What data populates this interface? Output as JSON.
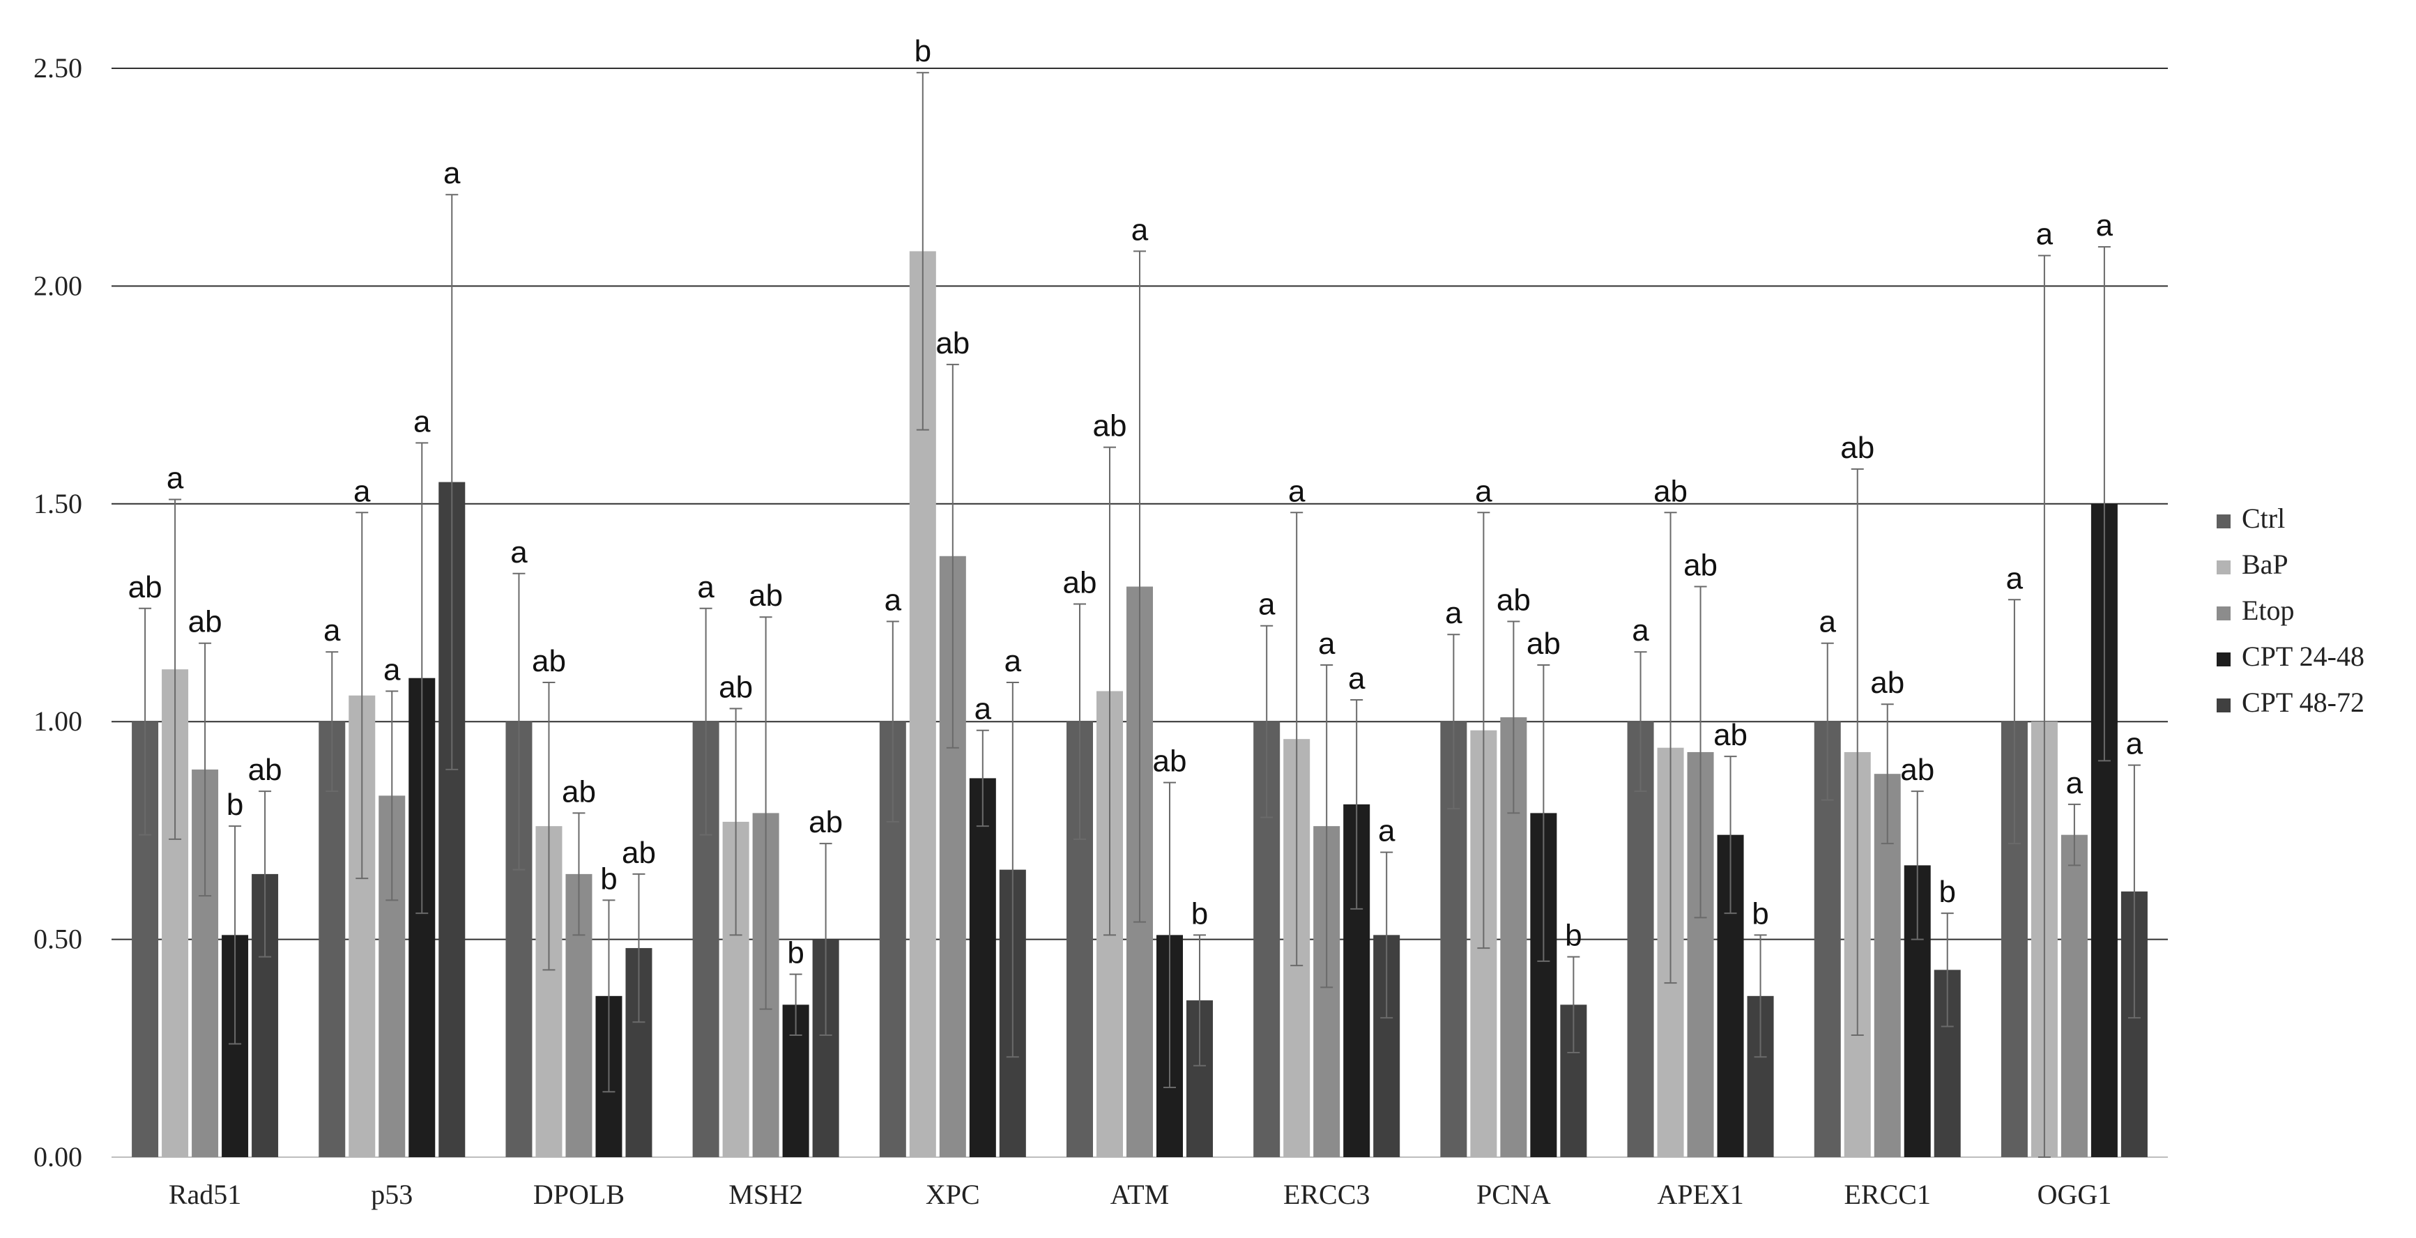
{
  "chart_data": {
    "type": "bar",
    "categories": [
      "Rad51",
      "p53",
      "DPOLB",
      "MSH2",
      "XPC",
      "ATM",
      "ERCC3",
      "PCNA",
      "APEX1",
      "ERCC1",
      "OGG1"
    ],
    "ylim": [
      0,
      2.5
    ],
    "yticks": [
      "0.00",
      "0.50",
      "1.00",
      "1.50",
      "2.00",
      "2.50"
    ],
    "grid": true,
    "legend_position": "right",
    "series": [
      {
        "name": "Ctrl",
        "color": "#5f5f5f",
        "values": [
          1.0,
          1.0,
          1.0,
          1.0,
          1.0,
          1.0,
          1.0,
          1.0,
          1.0,
          1.0,
          1.0
        ],
        "errors": [
          0.26,
          0.16,
          0.34,
          0.26,
          0.23,
          0.27,
          0.22,
          0.2,
          0.16,
          0.18,
          0.28
        ],
        "labels": [
          "ab",
          "a",
          "a",
          "a",
          "a",
          "ab",
          "a",
          "a",
          "a",
          "a",
          "a"
        ]
      },
      {
        "name": "BaP",
        "color": "#b4b4b4",
        "values": [
          1.12,
          1.06,
          0.76,
          0.77,
          2.08,
          1.07,
          0.96,
          0.98,
          0.94,
          0.93,
          1.0
        ],
        "errors": [
          0.39,
          0.42,
          0.33,
          0.26,
          0.41,
          0.56,
          0.52,
          0.5,
          0.54,
          0.65,
          1.07
        ],
        "labels": [
          "a",
          "a",
          "ab",
          "ab",
          "b",
          "ab",
          "a",
          "a",
          "ab",
          "ab",
          "a"
        ]
      },
      {
        "name": "Etop",
        "color": "#8c8c8c",
        "values": [
          0.89,
          0.83,
          0.65,
          0.79,
          1.38,
          1.31,
          0.76,
          1.01,
          0.93,
          0.88,
          0.74
        ],
        "errors": [
          0.29,
          0.24,
          0.14,
          0.45,
          0.44,
          0.77,
          0.37,
          0.22,
          0.38,
          0.16,
          0.07
        ],
        "labels": [
          "ab",
          "a",
          "ab",
          "ab",
          "ab",
          "a",
          "a",
          "ab",
          "ab",
          "ab",
          "a"
        ]
      },
      {
        "name": "CPT 24-48",
        "color": "#1e1e1e",
        "values": [
          0.51,
          1.1,
          0.37,
          0.35,
          0.87,
          0.51,
          0.81,
          0.79,
          0.74,
          0.67,
          1.5
        ],
        "errors": [
          0.25,
          0.54,
          0.22,
          0.07,
          0.11,
          0.35,
          0.24,
          0.34,
          0.18,
          0.17,
          0.59
        ],
        "labels": [
          "b",
          "a",
          "b",
          "b",
          "a",
          "ab",
          "a",
          "ab",
          "ab",
          "ab",
          "a"
        ]
      },
      {
        "name": "CPT 48-72",
        "color": "#404040",
        "values": [
          0.65,
          1.55,
          0.48,
          0.5,
          0.66,
          0.36,
          0.51,
          0.35,
          0.37,
          0.43,
          0.61
        ],
        "errors": [
          0.19,
          0.66,
          0.17,
          0.22,
          0.43,
          0.15,
          0.19,
          0.11,
          0.14,
          0.13,
          0.29
        ],
        "labels": [
          "ab",
          "a",
          "ab",
          "ab",
          "a",
          "b",
          "a",
          "b",
          "b",
          "b",
          "a"
        ]
      }
    ]
  }
}
